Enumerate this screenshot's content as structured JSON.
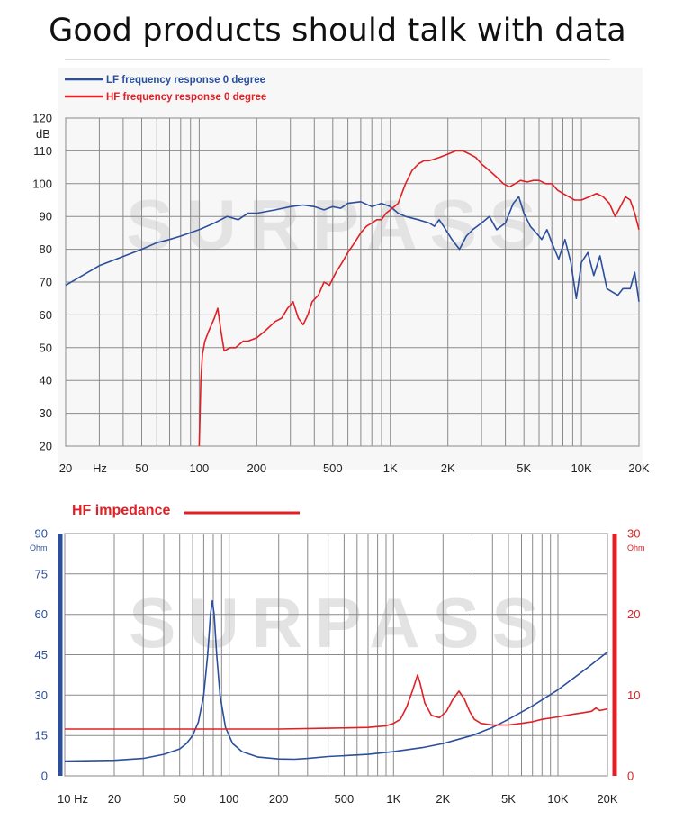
{
  "header": {
    "title": "Good products should talk with data"
  },
  "watermark": "SURPASS",
  "colors": {
    "lf_blue": "#2b4f9c",
    "hf_red": "#e02025",
    "grid": "#8a8a8a"
  },
  "chart_data": [
    {
      "type": "line",
      "id": "frequency-response",
      "x_scale": "log",
      "xlim": [
        20,
        20000
      ],
      "ylim": [
        20,
        120
      ],
      "ylabel": "dB",
      "xlabel": "Hz",
      "grid": true,
      "legend_position": "top-left",
      "x_ticks": [
        {
          "value": 20,
          "label": "20"
        },
        {
          "value": 50,
          "label": "50"
        },
        {
          "value": 100,
          "label": "100"
        },
        {
          "value": 200,
          "label": "200"
        },
        {
          "value": 500,
          "label": "500"
        },
        {
          "value": 1000,
          "label": "1K"
        },
        {
          "value": 2000,
          "label": "2K"
        },
        {
          "value": 5000,
          "label": "5K"
        },
        {
          "value": 10000,
          "label": "10K"
        },
        {
          "value": 20000,
          "label": "20K"
        }
      ],
      "y_ticks": [
        20,
        30,
        40,
        50,
        60,
        70,
        80,
        90,
        100,
        110,
        120
      ],
      "series": [
        {
          "name": "LF frequency response 0 degree",
          "color": "#2b4f9c",
          "points": [
            [
              20,
              69
            ],
            [
              30,
              75
            ],
            [
              50,
              80
            ],
            [
              60,
              82
            ],
            [
              70,
              83
            ],
            [
              80,
              84
            ],
            [
              100,
              86
            ],
            [
              120,
              88
            ],
            [
              140,
              90
            ],
            [
              160,
              89
            ],
            [
              180,
              91
            ],
            [
              200,
              91
            ],
            [
              250,
              92
            ],
            [
              300,
              93
            ],
            [
              350,
              93.5
            ],
            [
              400,
              93
            ],
            [
              450,
              92
            ],
            [
              500,
              93
            ],
            [
              550,
              92.5
            ],
            [
              600,
              94
            ],
            [
              700,
              94.5
            ],
            [
              800,
              93
            ],
            [
              900,
              94
            ],
            [
              1000,
              93
            ],
            [
              1100,
              91
            ],
            [
              1200,
              90
            ],
            [
              1400,
              89
            ],
            [
              1600,
              88
            ],
            [
              1700,
              87
            ],
            [
              1800,
              89
            ],
            [
              1900,
              87
            ],
            [
              2100,
              83
            ],
            [
              2300,
              80
            ],
            [
              2500,
              84
            ],
            [
              2700,
              86
            ],
            [
              3000,
              88
            ],
            [
              3300,
              90
            ],
            [
              3600,
              86
            ],
            [
              4000,
              88
            ],
            [
              4400,
              94
            ],
            [
              4700,
              96
            ],
            [
              5000,
              91
            ],
            [
              5400,
              87
            ],
            [
              5800,
              85
            ],
            [
              6200,
              83
            ],
            [
              6600,
              86
            ],
            [
              7000,
              82
            ],
            [
              7600,
              77
            ],
            [
              8200,
              83
            ],
            [
              8800,
              76
            ],
            [
              9400,
              65
            ],
            [
              10000,
              76
            ],
            [
              10800,
              79
            ],
            [
              11600,
              72
            ],
            [
              12500,
              78
            ],
            [
              13600,
              68
            ],
            [
              14500,
              67
            ],
            [
              15500,
              66
            ],
            [
              16500,
              68
            ],
            [
              18000,
              68
            ],
            [
              19000,
              73
            ],
            [
              20000,
              64
            ]
          ]
        },
        {
          "name": "HF frequency response 0 degree",
          "color": "#e02025",
          "points": [
            [
              100,
              20
            ],
            [
              102,
              40
            ],
            [
              104,
              48
            ],
            [
              107,
              52
            ],
            [
              112,
              55
            ],
            [
              120,
              59
            ],
            [
              125,
              62
            ],
            [
              130,
              55
            ],
            [
              135,
              49
            ],
            [
              145,
              50
            ],
            [
              155,
              50
            ],
            [
              170,
              52
            ],
            [
              180,
              52
            ],
            [
              200,
              53
            ],
            [
              220,
              55
            ],
            [
              250,
              58
            ],
            [
              270,
              59
            ],
            [
              290,
              62
            ],
            [
              310,
              64
            ],
            [
              330,
              59
            ],
            [
              350,
              57
            ],
            [
              370,
              60
            ],
            [
              390,
              64
            ],
            [
              420,
              66
            ],
            [
              450,
              70
            ],
            [
              480,
              69
            ],
            [
              520,
              73
            ],
            [
              560,
              76
            ],
            [
              600,
              79
            ],
            [
              650,
              82
            ],
            [
              700,
              85
            ],
            [
              750,
              87
            ],
            [
              800,
              88
            ],
            [
              850,
              89
            ],
            [
              900,
              89
            ],
            [
              950,
              91
            ],
            [
              1000,
              92
            ],
            [
              1100,
              94
            ],
            [
              1200,
              100
            ],
            [
              1300,
              104
            ],
            [
              1400,
              106
            ],
            [
              1500,
              107
            ],
            [
              1600,
              107
            ],
            [
              1700,
              107.5
            ],
            [
              1800,
              108
            ],
            [
              2000,
              109
            ],
            [
              2200,
              110
            ],
            [
              2400,
              110
            ],
            [
              2600,
              109
            ],
            [
              2800,
              108
            ],
            [
              3000,
              106
            ],
            [
              3300,
              104
            ],
            [
              3600,
              102
            ],
            [
              3900,
              100
            ],
            [
              4200,
              99
            ],
            [
              4500,
              100
            ],
            [
              4800,
              101
            ],
            [
              5200,
              100.5
            ],
            [
              5600,
              101
            ],
            [
              6000,
              101
            ],
            [
              6500,
              100
            ],
            [
              7000,
              100
            ],
            [
              7500,
              98
            ],
            [
              8000,
              97
            ],
            [
              8600,
              96
            ],
            [
              9200,
              95
            ],
            [
              10000,
              95
            ],
            [
              11000,
              96
            ],
            [
              12000,
              97
            ],
            [
              13000,
              96
            ],
            [
              14000,
              94
            ],
            [
              15000,
              90
            ],
            [
              16000,
              93
            ],
            [
              17000,
              96
            ],
            [
              18000,
              95
            ],
            [
              19000,
              91
            ],
            [
              20000,
              86
            ]
          ]
        }
      ]
    },
    {
      "type": "line",
      "id": "impedance",
      "x_scale": "log",
      "xlim": [
        10,
        20000
      ],
      "ylim_left": [
        0,
        90
      ],
      "ylim_right": [
        0,
        30
      ],
      "ylabel_left": "Ohm",
      "ylabel_right": "Ohm",
      "xlabel": "Hz",
      "grid": true,
      "legend_position": "top-left",
      "x_ticks": [
        {
          "value": 10,
          "label": "10 Hz"
        },
        {
          "value": 20,
          "label": "20"
        },
        {
          "value": 50,
          "label": "50"
        },
        {
          "value": 100,
          "label": "100"
        },
        {
          "value": 200,
          "label": "200"
        },
        {
          "value": 500,
          "label": "500"
        },
        {
          "value": 1000,
          "label": "1K"
        },
        {
          "value": 2000,
          "label": "2K"
        },
        {
          "value": 5000,
          "label": "5K"
        },
        {
          "value": 10000,
          "label": "10K"
        },
        {
          "value": 20000,
          "label": "20K"
        }
      ],
      "y_ticks_left": [
        0,
        15,
        30,
        45,
        60,
        75,
        90
      ],
      "y_ticks_right": [
        0,
        10,
        20,
        30
      ],
      "series": [
        {
          "name": "",
          "color": "#2b4f9c",
          "axis": "left",
          "points": [
            [
              10,
              5.5
            ],
            [
              20,
              5.8
            ],
            [
              30,
              6.5
            ],
            [
              40,
              8
            ],
            [
              50,
              10
            ],
            [
              55,
              12
            ],
            [
              60,
              15
            ],
            [
              65,
              20
            ],
            [
              70,
              30
            ],
            [
              74,
              45
            ],
            [
              77,
              60
            ],
            [
              79,
              65
            ],
            [
              81,
              60
            ],
            [
              84,
              45
            ],
            [
              88,
              30
            ],
            [
              95,
              18
            ],
            [
              105,
              12
            ],
            [
              120,
              9
            ],
            [
              150,
              7
            ],
            [
              200,
              6.3
            ],
            [
              250,
              6.2
            ],
            [
              300,
              6.5
            ],
            [
              400,
              7.2
            ],
            [
              500,
              7.5
            ],
            [
              700,
              8
            ],
            [
              1000,
              9
            ],
            [
              1500,
              10.5
            ],
            [
              2000,
              12
            ],
            [
              3000,
              15
            ],
            [
              4000,
              18
            ],
            [
              5000,
              21
            ],
            [
              7000,
              26
            ],
            [
              10000,
              32
            ],
            [
              15000,
              40
            ],
            [
              20000,
              46
            ]
          ]
        },
        {
          "name": "HF impedance",
          "color": "#e02025",
          "axis": "right",
          "points": [
            [
              10,
              5.8
            ],
            [
              50,
              5.8
            ],
            [
              100,
              5.8
            ],
            [
              200,
              5.8
            ],
            [
              400,
              5.9
            ],
            [
              700,
              6
            ],
            [
              900,
              6.2
            ],
            [
              1000,
              6.5
            ],
            [
              1100,
              7
            ],
            [
              1200,
              8.5
            ],
            [
              1300,
              10.5
            ],
            [
              1400,
              12.5
            ],
            [
              1450,
              11.5
            ],
            [
              1550,
              9
            ],
            [
              1700,
              7.5
            ],
            [
              1900,
              7.2
            ],
            [
              2100,
              8
            ],
            [
              2300,
              9.5
            ],
            [
              2500,
              10.5
            ],
            [
              2700,
              9.5
            ],
            [
              2900,
              8
            ],
            [
              3100,
              7
            ],
            [
              3400,
              6.5
            ],
            [
              4000,
              6.3
            ],
            [
              5000,
              6.3
            ],
            [
              6000,
              6.5
            ],
            [
              7000,
              6.7
            ],
            [
              8000,
              7
            ],
            [
              10000,
              7.3
            ],
            [
              12000,
              7.6
            ],
            [
              14000,
              7.8
            ],
            [
              16000,
              8
            ],
            [
              17000,
              8.4
            ],
            [
              18000,
              8.1
            ],
            [
              19000,
              8.2
            ],
            [
              20000,
              8.3
            ]
          ]
        }
      ]
    }
  ]
}
